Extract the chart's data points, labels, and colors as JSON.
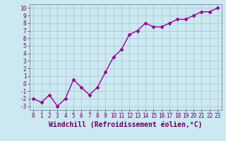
{
  "x": [
    0,
    1,
    2,
    3,
    4,
    5,
    6,
    7,
    8,
    9,
    10,
    11,
    12,
    13,
    14,
    15,
    16,
    17,
    18,
    19,
    20,
    21,
    22,
    23
  ],
  "y": [
    -2,
    -2.5,
    -1.5,
    -3,
    -2,
    0.5,
    -0.5,
    -1.5,
    -0.5,
    1.5,
    3.5,
    4.5,
    6.5,
    7,
    8,
    7.5,
    7.5,
    8,
    8.5,
    8.5,
    9,
    9.5,
    9.5,
    10
  ],
  "line_color": "#990099",
  "marker": "D",
  "marker_size": 2.5,
  "bg_color": "#cce8f0",
  "grid_color": "#aaccdd",
  "xlabel": "Windchill (Refroidissement éolien,°C)",
  "xlim": [
    -0.5,
    23.5
  ],
  "ylim": [
    -3.5,
    10.5
  ],
  "yticks": [
    -3,
    -2,
    -1,
    0,
    1,
    2,
    3,
    4,
    5,
    6,
    7,
    8,
    9,
    10
  ],
  "xticks": [
    0,
    1,
    2,
    3,
    4,
    5,
    6,
    7,
    8,
    9,
    10,
    11,
    12,
    13,
    14,
    15,
    16,
    17,
    18,
    19,
    20,
    21,
    22,
    23
  ],
  "tick_label_size": 5.5,
  "xlabel_size": 7.0,
  "line_width": 1.0,
  "tick_color": "#660066",
  "label_color": "#660066"
}
